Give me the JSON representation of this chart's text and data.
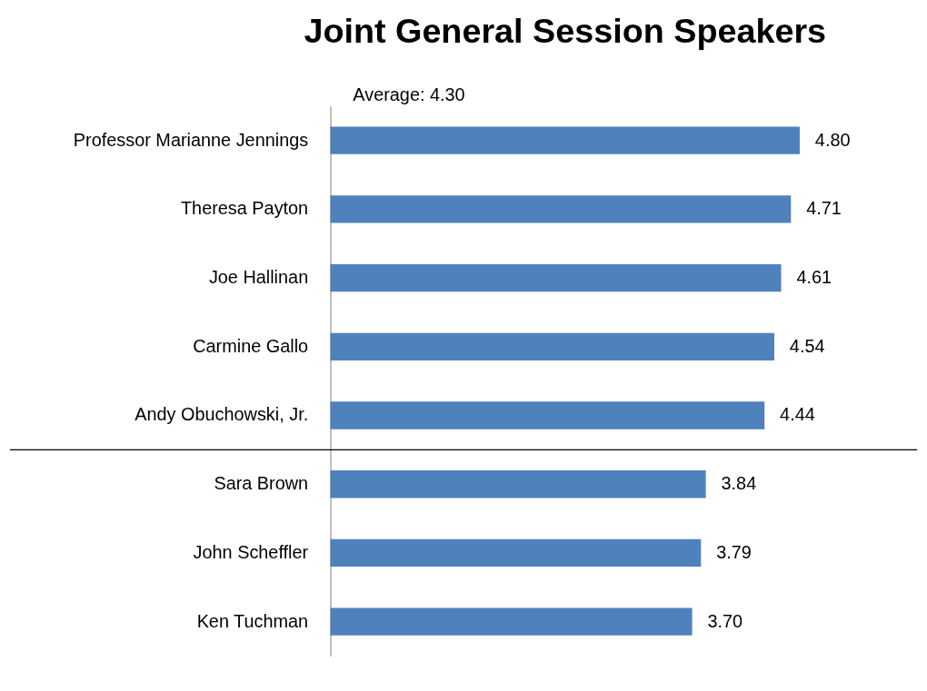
{
  "chart_data": {
    "type": "bar",
    "orientation": "horizontal",
    "title": "Joint General Session Speakers",
    "categories": [
      "Professor Marianne Jennings",
      "Theresa Payton",
      "Joe Hallinan",
      "Carmine Gallo",
      "Andy Obuchowski, Jr.",
      "Sara Brown",
      "John Scheffler",
      "Ken Tuchman"
    ],
    "values": [
      4.8,
      4.71,
      4.61,
      4.54,
      4.44,
      3.84,
      3.79,
      3.7
    ],
    "value_labels": [
      "4.80",
      "4.71",
      "4.61",
      "4.54",
      "4.44",
      "3.84",
      "3.79",
      "3.70"
    ],
    "color": "#4f81bd",
    "tick_labels": "y",
    "annotations": [
      "Average: 4.30"
    ]
  }
}
